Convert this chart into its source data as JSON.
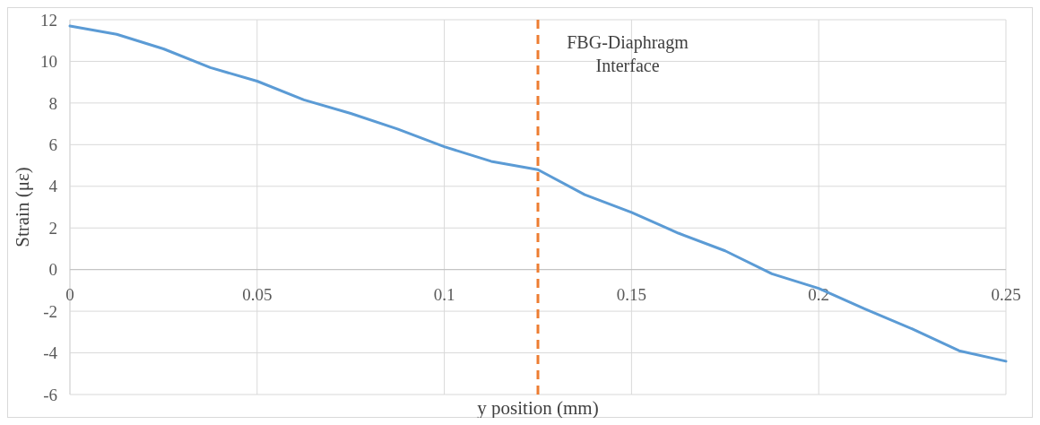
{
  "chart_data": {
    "type": "line",
    "xlabel": "y position (mm)",
    "ylabel": "Strain (με)",
    "x": [
      0,
      0.0125,
      0.025,
      0.0375,
      0.05,
      0.0625,
      0.075,
      0.0875,
      0.1,
      0.1125,
      0.125,
      0.1375,
      0.15,
      0.1625,
      0.175,
      0.1875,
      0.2,
      0.2125,
      0.225,
      0.2375,
      0.25
    ],
    "series": [
      {
        "color": "#5b9bd5",
        "values": [
          11.7,
          11.3,
          10.6,
          9.7,
          9.05,
          8.15,
          7.5,
          6.75,
          5.9,
          5.2,
          4.8,
          3.6,
          2.75,
          1.75,
          0.9,
          -0.2,
          -0.9,
          -1.9,
          -2.85,
          -3.9,
          -4.4
        ]
      }
    ],
    "xlim": [
      0,
      0.25
    ],
    "xticks": [
      0,
      0.05,
      0.1,
      0.15,
      0.2,
      0.25
    ],
    "ylim": [
      -6,
      12
    ],
    "yticks": [
      -6,
      -4,
      -2,
      0,
      2,
      4,
      6,
      8,
      10,
      12
    ],
    "grid": true,
    "marker": "none",
    "line_style": "solid",
    "ref_lines": [
      {
        "axis": "x",
        "value": 0.125,
        "label": "FBG-Diaphragm Interface",
        "color": "#ed7d31",
        "line_style": "dashed"
      }
    ]
  }
}
